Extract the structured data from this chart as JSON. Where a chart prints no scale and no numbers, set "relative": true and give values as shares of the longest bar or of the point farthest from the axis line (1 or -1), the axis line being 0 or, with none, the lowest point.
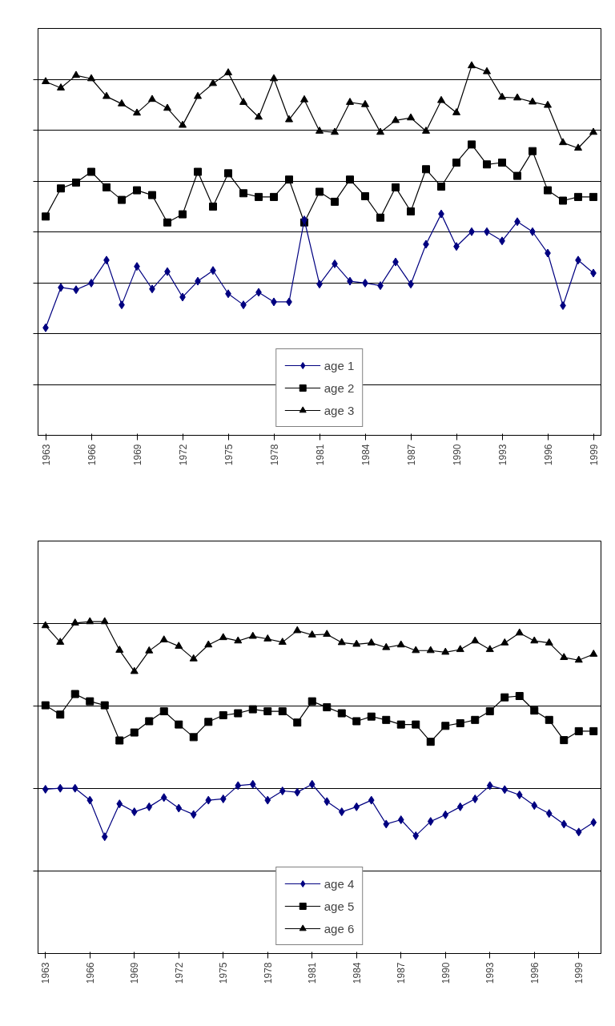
{
  "chart_data": [
    {
      "type": "line",
      "relative": true,
      "grid": "y",
      "legend": "bottom",
      "tick_labels": "x",
      "x": [
        1963,
        1964,
        1965,
        1966,
        1967,
        1968,
        1969,
        1970,
        1971,
        1972,
        1973,
        1974,
        1975,
        1976,
        1977,
        1978,
        1979,
        1980,
        1981,
        1982,
        1983,
        1984,
        1985,
        1986,
        1987,
        1988,
        1989,
        1990,
        1991,
        1992,
        1993,
        1994,
        1995,
        1996,
        1997,
        1998,
        1999
      ],
      "xlim": [
        1962.5,
        1999.5
      ],
      "xticks": [
        1963,
        1966,
        1969,
        1972,
        1975,
        1978,
        1981,
        1984,
        1987,
        1990,
        1993,
        1996,
        1999
      ],
      "series": [
        {
          "name": "age 1",
          "color": "#000080",
          "marker": "diamond",
          "values": [
            0.291,
            0.4,
            0.394,
            0.412,
            0.474,
            0.353,
            0.457,
            0.396,
            0.443,
            0.374,
            0.417,
            0.446,
            0.383,
            0.353,
            0.387,
            0.361,
            0.361,
            0.583,
            0.409,
            0.464,
            0.417,
            0.412,
            0.405,
            0.469,
            0.409,
            0.517,
            0.599,
            0.511,
            0.551,
            0.551,
            0.526,
            0.578,
            0.551,
            0.493,
            0.351,
            0.474,
            0.439
          ]
        },
        {
          "name": "age 2",
          "color": "#000000",
          "marker": "square",
          "values": [
            0.592,
            0.668,
            0.684,
            0.713,
            0.671,
            0.637,
            0.663,
            0.65,
            0.576,
            0.598,
            0.713,
            0.619,
            0.709,
            0.655,
            0.645,
            0.645,
            0.692,
            0.576,
            0.659,
            0.632,
            0.692,
            0.647,
            0.589,
            0.671,
            0.606,
            0.72,
            0.673,
            0.738,
            0.787,
            0.733,
            0.738,
            0.702,
            0.769,
            0.663,
            0.635,
            0.645,
            0.645
          ]
        },
        {
          "name": "age 3",
          "color": "#000000",
          "marker": "triangle",
          "values": [
            0.957,
            0.94,
            0.974,
            0.965,
            0.917,
            0.897,
            0.872,
            0.909,
            0.885,
            0.839,
            0.917,
            0.952,
            0.981,
            0.901,
            0.861,
            0.965,
            0.854,
            0.908,
            0.823,
            0.82,
            0.901,
            0.895,
            0.82,
            0.852,
            0.859,
            0.823,
            0.906,
            0.873,
            1.0,
            0.984,
            0.915,
            0.913,
            0.902,
            0.893,
            0.792,
            0.777,
            0.82
          ]
        }
      ]
    },
    {
      "type": "line",
      "relative": true,
      "grid": "y",
      "legend": "bottom",
      "tick_labels": "x",
      "x": [
        1963,
        1964,
        1965,
        1966,
        1967,
        1968,
        1969,
        1970,
        1971,
        1972,
        1973,
        1974,
        1975,
        1976,
        1977,
        1978,
        1979,
        1980,
        1981,
        1982,
        1983,
        1984,
        1985,
        1986,
        1987,
        1988,
        1989,
        1990,
        1991,
        1992,
        1993,
        1994,
        1995,
        1996,
        1997,
        1998,
        1999,
        2000
      ],
      "xlim": [
        1962.5,
        2000.5
      ],
      "xticks": [
        1963,
        1966,
        1969,
        1972,
        1975,
        1978,
        1981,
        1984,
        1987,
        1990,
        1993,
        1996,
        1999
      ],
      "series": [
        {
          "name": "age 4",
          "color": "#000080",
          "marker": "diamond",
          "values": [
            0.495,
            0.498,
            0.498,
            0.462,
            0.352,
            0.451,
            0.427,
            0.442,
            0.47,
            0.438,
            0.419,
            0.462,
            0.466,
            0.506,
            0.51,
            0.462,
            0.49,
            0.486,
            0.51,
            0.458,
            0.427,
            0.442,
            0.462,
            0.39,
            0.403,
            0.355,
            0.398,
            0.418,
            0.442,
            0.466,
            0.506,
            0.494,
            0.478,
            0.446,
            0.422,
            0.39,
            0.366,
            0.395
          ]
        },
        {
          "name": "age 5",
          "color": "#000000",
          "marker": "square",
          "values": [
            0.748,
            0.72,
            0.782,
            0.76,
            0.748,
            0.642,
            0.666,
            0.7,
            0.73,
            0.69,
            0.652,
            0.698,
            0.718,
            0.724,
            0.736,
            0.73,
            0.73,
            0.696,
            0.76,
            0.742,
            0.724,
            0.7,
            0.714,
            0.704,
            0.69,
            0.69,
            0.638,
            0.686,
            0.694,
            0.704,
            0.73,
            0.772,
            0.776,
            0.732,
            0.704,
            0.643,
            0.67,
            0.67
          ]
        },
        {
          "name": "age 6",
          "color": "#000000",
          "marker": "triangle",
          "values": [
            0.988,
            0.938,
            0.996,
            1.0,
            1.0,
            0.914,
            0.85,
            0.912,
            0.945,
            0.926,
            0.888,
            0.93,
            0.952,
            0.942,
            0.956,
            0.948,
            0.938,
            0.973,
            0.96,
            0.962,
            0.937,
            0.932,
            0.936,
            0.922,
            0.93,
            0.913,
            0.913,
            0.908,
            0.916,
            0.942,
            0.916,
            0.936,
            0.966,
            0.942,
            0.936,
            0.892,
            0.884,
            0.902
          ]
        }
      ]
    }
  ]
}
